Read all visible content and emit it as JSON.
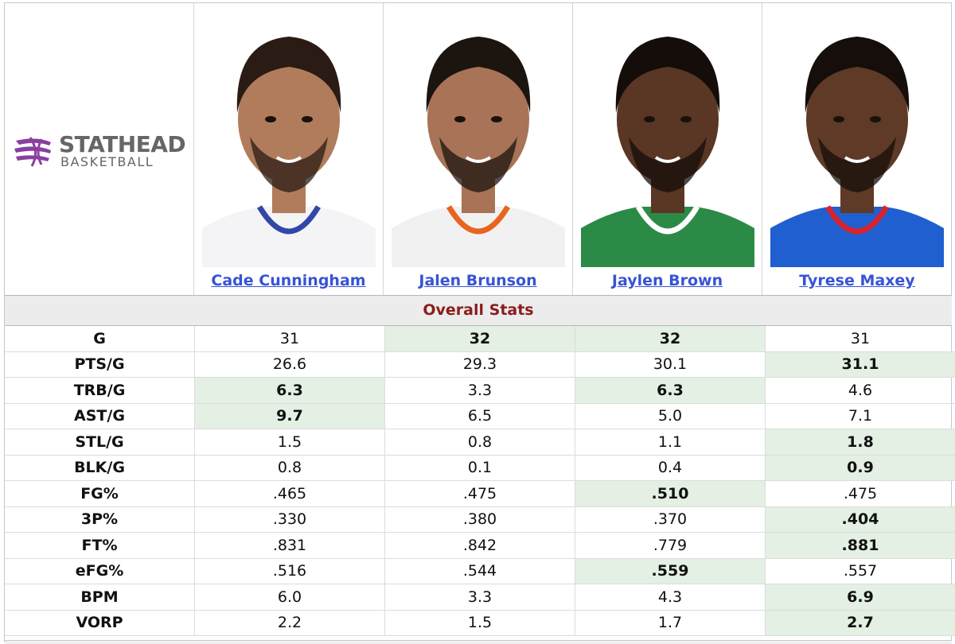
{
  "logo": {
    "line1": "STATHEAD",
    "line2": "BASKETBALL",
    "accent": "#8a3fa0"
  },
  "players": [
    {
      "name": "Cade Cunningham",
      "jersey": "#f4f4f6",
      "trim": "#3347a8",
      "skin": "#b07c5c",
      "hair": "#2a1c14"
    },
    {
      "name": "Jalen Brunson",
      "jersey": "#f1f1f1",
      "trim": "#e8641f",
      "skin": "#a87356",
      "hair": "#1c140f"
    },
    {
      "name": "Jaylen Brown",
      "jersey": "#2c8a47",
      "trim": "#ffffff",
      "skin": "#5a3624",
      "hair": "#140d09"
    },
    {
      "name": "Tyrese Maxey",
      "jersey": "#1f5fcf",
      "trim": "#d8232e",
      "skin": "#5e3a27",
      "hair": "#150e0a"
    }
  ],
  "section_title": "Overall Stats",
  "stats": [
    {
      "label": "G",
      "values": [
        "31",
        "32",
        "32",
        "31"
      ],
      "best": [
        false,
        true,
        true,
        false
      ]
    },
    {
      "label": "PTS/G",
      "values": [
        "26.6",
        "29.3",
        "30.1",
        "31.1"
      ],
      "best": [
        false,
        false,
        false,
        true
      ]
    },
    {
      "label": "TRB/G",
      "values": [
        "6.3",
        "3.3",
        "6.3",
        "4.6"
      ],
      "best": [
        true,
        false,
        true,
        false
      ]
    },
    {
      "label": "AST/G",
      "values": [
        "9.7",
        "6.5",
        "5.0",
        "7.1"
      ],
      "best": [
        true,
        false,
        false,
        false
      ]
    },
    {
      "label": "STL/G",
      "values": [
        "1.5",
        "0.8",
        "1.1",
        "1.8"
      ],
      "best": [
        false,
        false,
        false,
        true
      ]
    },
    {
      "label": "BLK/G",
      "values": [
        "0.8",
        "0.1",
        "0.4",
        "0.9"
      ],
      "best": [
        false,
        false,
        false,
        true
      ]
    },
    {
      "label": "FG%",
      "values": [
        ".465",
        ".475",
        ".510",
        ".475"
      ],
      "best": [
        false,
        false,
        true,
        false
      ]
    },
    {
      "label": "3P%",
      "values": [
        ".330",
        ".380",
        ".370",
        ".404"
      ],
      "best": [
        false,
        false,
        false,
        true
      ]
    },
    {
      "label": "FT%",
      "values": [
        ".831",
        ".842",
        ".779",
        ".881"
      ],
      "best": [
        false,
        false,
        false,
        true
      ]
    },
    {
      "label": "eFG%",
      "values": [
        ".516",
        ".544",
        ".559",
        ".557"
      ],
      "best": [
        false,
        false,
        true,
        false
      ]
    },
    {
      "label": "BPM",
      "values": [
        "6.0",
        "3.3",
        "4.3",
        "6.9"
      ],
      "best": [
        false,
        false,
        false,
        true
      ]
    },
    {
      "label": "VORP",
      "values": [
        "2.2",
        "1.5",
        "1.7",
        "2.7"
      ],
      "best": [
        false,
        false,
        false,
        true
      ]
    }
  ]
}
